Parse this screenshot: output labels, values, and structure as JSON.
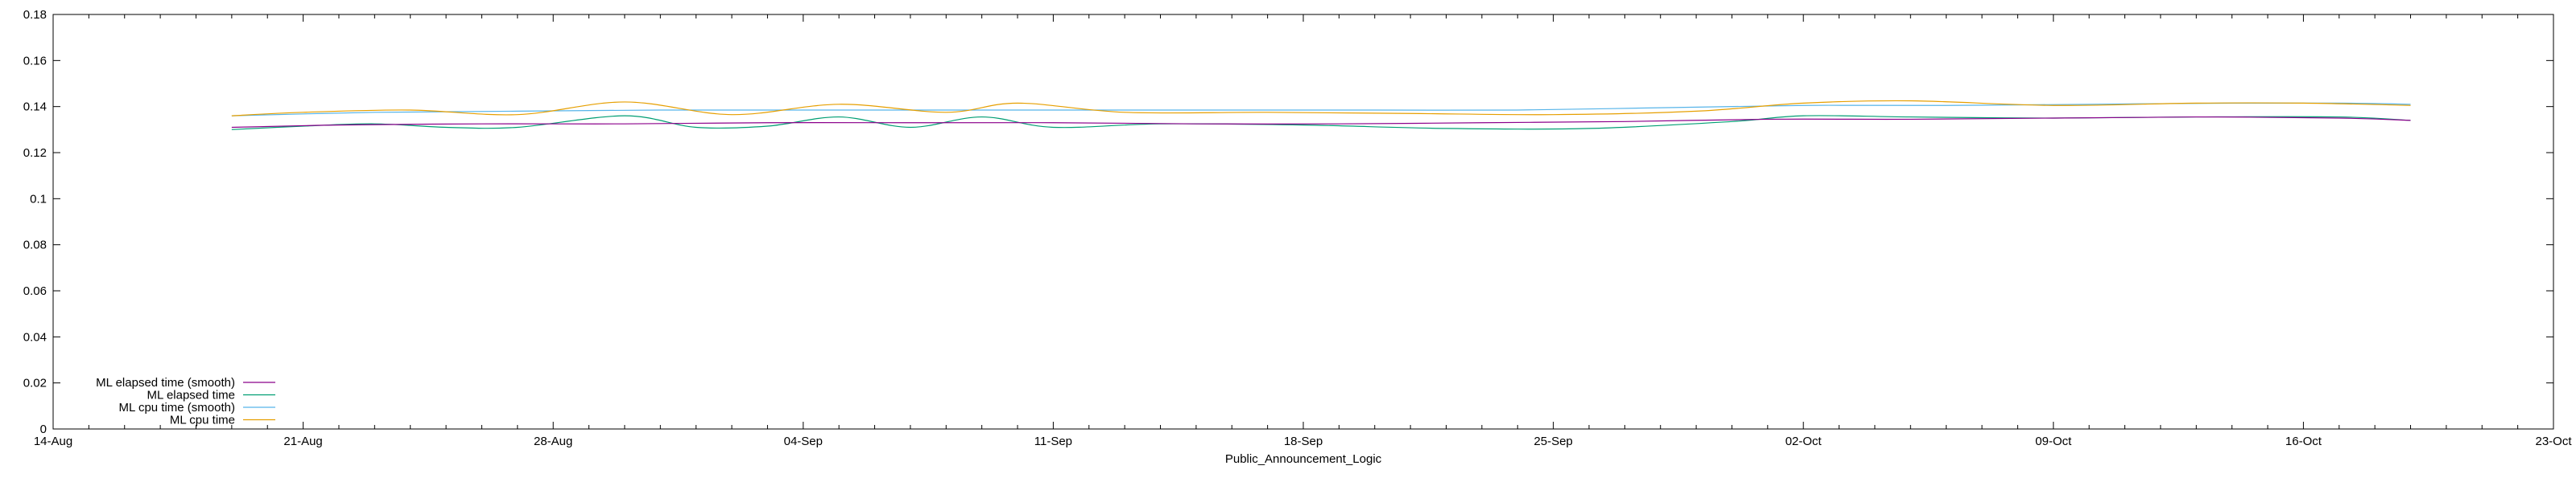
{
  "chart_data": {
    "type": "line",
    "xlabel": "Public_Announcement_Logic",
    "ylabel": "",
    "title": "",
    "x_ticks": [
      "14-Aug",
      "21-Aug",
      "28-Aug",
      "04-Sep",
      "11-Sep",
      "18-Sep",
      "25-Sep",
      "02-Oct",
      "09-Oct",
      "16-Oct",
      "23-Oct"
    ],
    "y_ticks": [
      "0",
      "0.02",
      "0.04",
      "0.06",
      "0.08",
      "0.1",
      "0.12",
      "0.14",
      "0.16",
      "0.18"
    ],
    "xlim": [
      "2023-08-14",
      "2023-10-23"
    ],
    "ylim": [
      0,
      0.18
    ],
    "grid": false,
    "legend_position": "bottom-left",
    "series": [
      {
        "name": "ML elapsed time (smooth)",
        "color": "#8b008b",
        "x": [
          "2023-08-19",
          "2023-08-22",
          "2023-08-26",
          "2023-08-30",
          "2023-09-03",
          "2023-09-07",
          "2023-09-11",
          "2023-09-15",
          "2023-09-19",
          "2023-09-23",
          "2023-09-27",
          "2023-10-01",
          "2023-10-05",
          "2023-10-09",
          "2023-10-13",
          "2023-10-17",
          "2023-10-19"
        ],
        "values": [
          0.131,
          0.132,
          0.1325,
          0.1325,
          0.133,
          0.133,
          0.133,
          0.1325,
          0.1325,
          0.133,
          0.1335,
          0.1345,
          0.1345,
          0.135,
          0.1355,
          0.135,
          0.134
        ]
      },
      {
        "name": "ML elapsed time",
        "color": "#009e73",
        "x": [
          "2023-08-19",
          "2023-08-21",
          "2023-08-23",
          "2023-08-25",
          "2023-08-27",
          "2023-08-30",
          "2023-09-01",
          "2023-09-03",
          "2023-09-05",
          "2023-09-07",
          "2023-09-09",
          "2023-09-11",
          "2023-09-14",
          "2023-09-18",
          "2023-09-22",
          "2023-09-26",
          "2023-09-30",
          "2023-10-02",
          "2023-10-05",
          "2023-10-09",
          "2023-10-13",
          "2023-10-17",
          "2023-10-19"
        ],
        "values": [
          0.13,
          0.1315,
          0.1325,
          0.131,
          0.131,
          0.136,
          0.131,
          0.1315,
          0.1355,
          0.131,
          0.1355,
          0.131,
          0.1325,
          0.132,
          0.1305,
          0.1305,
          0.1335,
          0.136,
          0.1355,
          0.135,
          0.1355,
          0.1355,
          0.134
        ]
      },
      {
        "name": "ML cpu time (smooth)",
        "color": "#56b4e9",
        "x": [
          "2023-08-19",
          "2023-08-23",
          "2023-08-27",
          "2023-08-31",
          "2023-09-04",
          "2023-09-08",
          "2023-09-12",
          "2023-09-16",
          "2023-09-20",
          "2023-09-24",
          "2023-09-28",
          "2023-10-02",
          "2023-10-06",
          "2023-10-10",
          "2023-10-14",
          "2023-10-17",
          "2023-10-19"
        ],
        "values": [
          0.136,
          0.1375,
          0.138,
          0.1385,
          0.1385,
          0.1385,
          0.1385,
          0.1385,
          0.1385,
          0.1385,
          0.1395,
          0.1405,
          0.1405,
          0.141,
          0.1415,
          0.1415,
          0.141
        ]
      },
      {
        "name": "ML cpu time",
        "color": "#e69f00",
        "x": [
          "2023-08-19",
          "2023-08-21",
          "2023-08-24",
          "2023-08-27",
          "2023-08-30",
          "2023-09-02",
          "2023-09-05",
          "2023-09-08",
          "2023-09-10",
          "2023-09-13",
          "2023-09-17",
          "2023-09-21",
          "2023-09-25",
          "2023-09-29",
          "2023-10-02",
          "2023-10-05",
          "2023-10-09",
          "2023-10-13",
          "2023-10-16",
          "2023-10-19"
        ],
        "values": [
          0.136,
          0.1375,
          0.1385,
          0.1365,
          0.142,
          0.1365,
          0.141,
          0.1375,
          0.1415,
          0.1375,
          0.1375,
          0.137,
          0.1365,
          0.138,
          0.1415,
          0.1425,
          0.1405,
          0.1415,
          0.1415,
          0.1405
        ]
      }
    ]
  }
}
